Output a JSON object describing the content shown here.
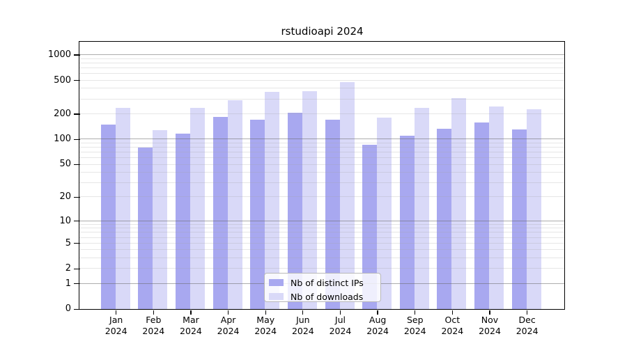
{
  "chart_data": {
    "type": "bar",
    "title": "rstudioapi 2024",
    "xlabel": "",
    "ylabel": "",
    "categories": [
      "Jan",
      "Feb",
      "Mar",
      "Apr",
      "May",
      "Jun",
      "Jul",
      "Aug",
      "Sep",
      "Oct",
      "Nov",
      "Dec"
    ],
    "year_label": "2024",
    "series": [
      {
        "name": "Nb of distinct IPs",
        "color": "#a8a8f0",
        "values": [
          148,
          80,
          117,
          182,
          170,
          207,
          170,
          86,
          110,
          133,
          158,
          130
        ]
      },
      {
        "name": "Nb of downloads",
        "color": "#d9d9f8",
        "values": [
          233,
          128,
          233,
          288,
          366,
          369,
          474,
          180,
          235,
          308,
          246,
          226
        ]
      }
    ],
    "y_axis": {
      "scale": "log1p",
      "tick_values": [
        0,
        1,
        2,
        5,
        10,
        20,
        50,
        100,
        200,
        500,
        1000
      ],
      "major_grid_values": [
        1,
        10,
        100,
        1000
      ],
      "minor_grid_decades": [
        1,
        10,
        100
      ],
      "ylim": [
        0,
        1420
      ]
    },
    "grid": "on",
    "legend": {
      "position": "bottom-center",
      "entries": [
        "Nb of distinct IPs",
        "Nb of downloads"
      ]
    },
    "colors": {
      "bar_ips": "#a8a8f0",
      "bar_downloads": "#d9d9f8",
      "axis": "#000000",
      "major_grid": "rgba(105,105,105,0.55)",
      "minor_grid": "rgba(165,165,165,0.28)",
      "background": "#ffffff"
    }
  }
}
